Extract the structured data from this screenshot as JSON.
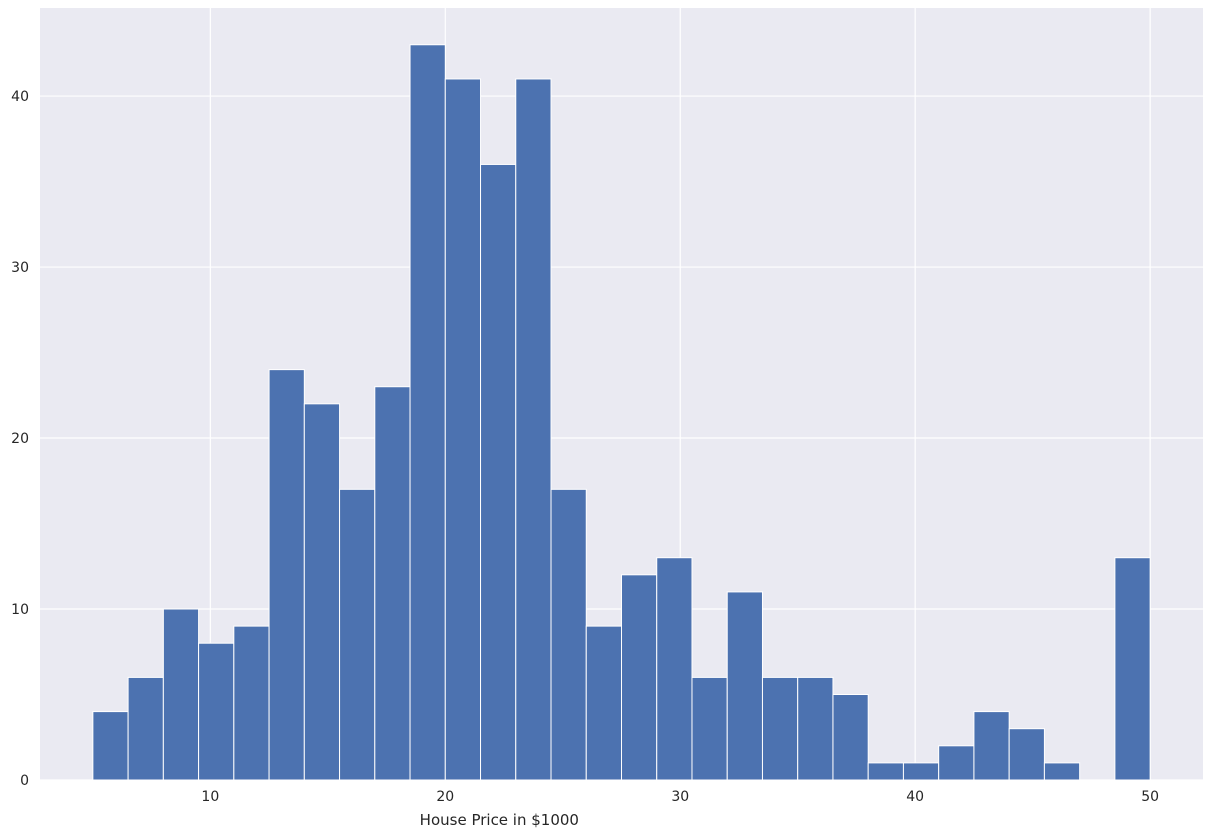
{
  "chart_data": {
    "type": "bar",
    "subtype": "histogram",
    "title": "",
    "xlabel": "House Price in $1000",
    "ylabel": "",
    "xlim": [
      2.75,
      52.25
    ],
    "ylim": [
      0,
      45.15
    ],
    "xticks": [
      10,
      20,
      30,
      40,
      50
    ],
    "yticks": [
      0,
      10,
      20,
      30,
      40
    ],
    "grid": true,
    "colors": {
      "bar": "#4c72b0",
      "background": "#eaeaf2",
      "grid": "#ffffff",
      "edge": "#ffffff"
    },
    "bins": {
      "start": 5.0,
      "end": 50.0,
      "count": 30,
      "width": 1.5
    },
    "values": [
      4,
      6,
      10,
      8,
      9,
      24,
      22,
      17,
      23,
      43,
      41,
      36,
      41,
      17,
      9,
      12,
      13,
      6,
      11,
      6,
      6,
      5,
      1,
      1,
      2,
      4,
      3,
      1,
      0,
      13
    ]
  }
}
